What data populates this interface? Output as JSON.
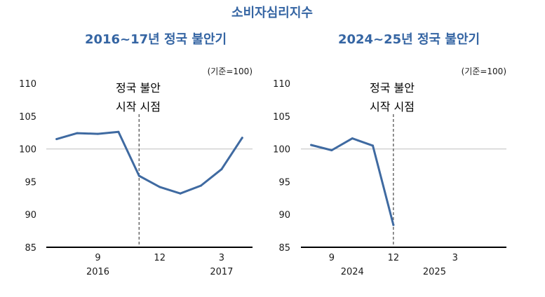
{
  "title": "소비자심리지수",
  "colors": {
    "title": "#3565A3",
    "line": "#3F6AA1",
    "axis": "#000000",
    "ref_line": "#CCCCCC",
    "marker": "#555555"
  },
  "chart_data": [
    {
      "type": "line",
      "title": "2016~17년 정국 불안기",
      "unit": "(기준=100)",
      "ylim": [
        85,
        110
      ],
      "yticks": [
        "110",
        "105",
        "100",
        "95",
        "90",
        "85"
      ],
      "reference_y": 100,
      "x_range": [
        0,
        10
      ],
      "x": [
        "2016-08",
        "2016-09",
        "2016-10",
        "2016-11",
        "2016-12",
        "2017-01",
        "2017-02",
        "2017-03",
        "2017-04",
        "2017-05"
      ],
      "series": [
        {
          "values": [
            101.5,
            102.4,
            102.3,
            102.6,
            95.9,
            94.2,
            93.2,
            94.4,
            96.9,
            101.7
          ]
        }
      ],
      "xtick_labels": [
        {
          "label": "9",
          "pos": 2.5
        },
        {
          "label": "12",
          "pos": 5.5
        },
        {
          "label": "3",
          "pos": 8.5
        }
      ],
      "year_labels": [
        {
          "label": "2016",
          "pos": 2.5
        },
        {
          "label": "2017",
          "pos": 8.5
        }
      ],
      "event": {
        "pos": 4.5,
        "label_line1": "정국 불안",
        "label_line2": "시작 시점"
      }
    },
    {
      "type": "line",
      "title": "2024~25년 정국 불안기",
      "unit": "(기준=100)",
      "ylim": [
        85,
        110
      ],
      "yticks": [
        "110",
        "105",
        "100",
        "95",
        "90",
        "85"
      ],
      "reference_y": 100,
      "x_range": [
        0,
        10
      ],
      "x": [
        "2024-08",
        "2024-09",
        "2024-10",
        "2024-11",
        "2024-12"
      ],
      "series": [
        {
          "values": [
            100.6,
            99.8,
            101.6,
            100.5,
            88.4
          ]
        }
      ],
      "xtick_labels": [
        {
          "label": "9",
          "pos": 1.5
        },
        {
          "label": "12",
          "pos": 4.5
        },
        {
          "label": "3",
          "pos": 7.5
        }
      ],
      "year_labels": [
        {
          "label": "2024",
          "pos": 2.5
        },
        {
          "label": "2025",
          "pos": 6.5
        }
      ],
      "event": {
        "pos": 4.5,
        "label_line1": "정국 불안",
        "label_line2": "시작 시점"
      }
    }
  ]
}
